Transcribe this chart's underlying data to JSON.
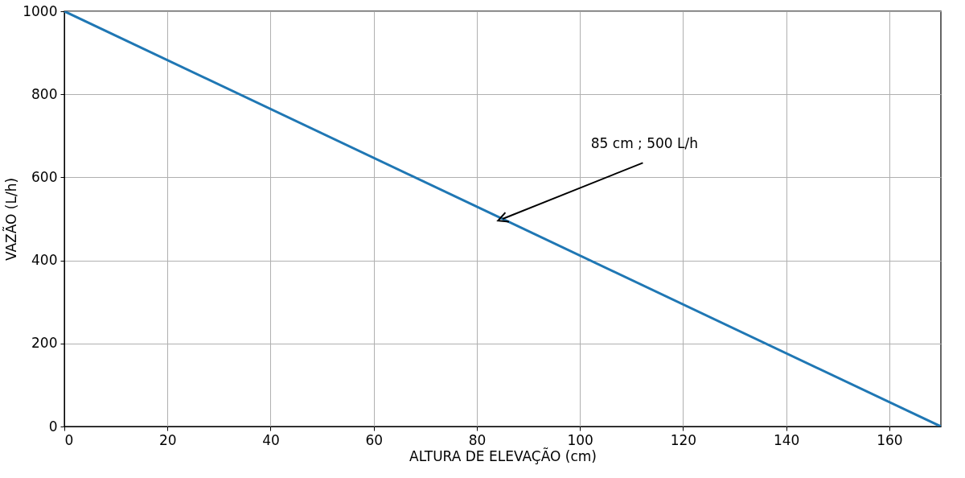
{
  "chart_data": {
    "type": "line",
    "xlabel": "ALTURA DE ELEVAÇÃO (cm)",
    "ylabel": "VAZÃO (L/h)",
    "x": [
      0,
      170
    ],
    "series": [
      {
        "color": "#1f77b4",
        "values": [
          1000,
          0
        ]
      }
    ],
    "xlim": [
      0,
      170
    ],
    "ylim": [
      0,
      1000
    ],
    "xticks": [
      0,
      20,
      40,
      60,
      80,
      100,
      120,
      140,
      160
    ],
    "yticks": [
      0,
      200,
      400,
      600,
      800,
      1000
    ],
    "grid": true,
    "marker": "none",
    "line_style": "solid",
    "annotations": [
      {
        "text": "85 cm ; 500 L/h",
        "x": 85,
        "y": 500
      }
    ]
  }
}
